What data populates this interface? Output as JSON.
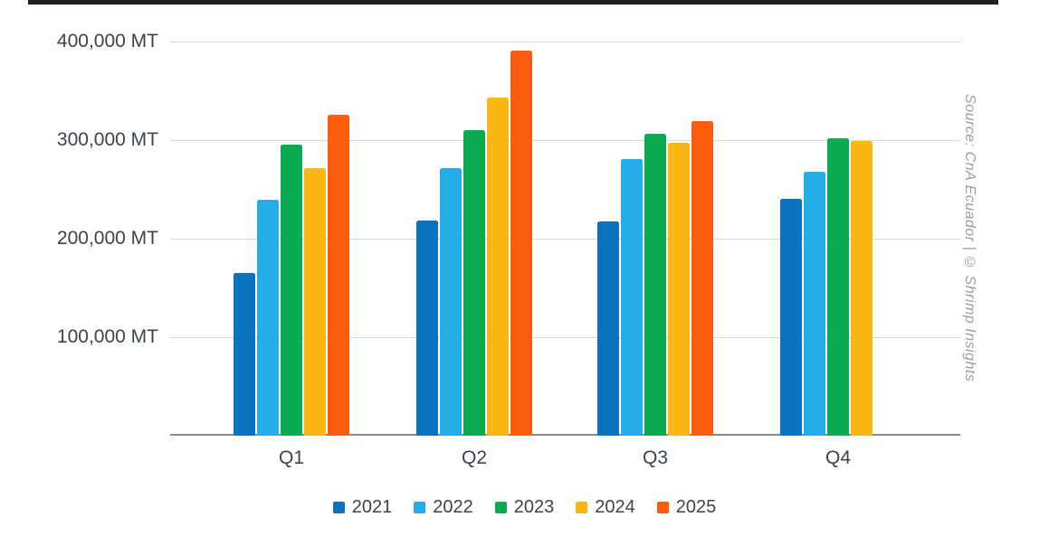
{
  "page": {
    "background": "#ffffff",
    "top_bar_color": "#231f20"
  },
  "chart_data": {
    "type": "bar",
    "title": "",
    "categories": [
      "Q1",
      "Q2",
      "Q3",
      "Q4"
    ],
    "series": [
      {
        "name": "2021",
        "color": "#0b72bd",
        "values": [
          165000,
          218000,
          217000,
          240000
        ]
      },
      {
        "name": "2022",
        "color": "#23aee8",
        "values": [
          239000,
          272000,
          281000,
          268000
        ]
      },
      {
        "name": "2023",
        "color": "#0caa50",
        "values": [
          295000,
          310000,
          306000,
          302000
        ]
      },
      {
        "name": "2024",
        "color": "#fdb714",
        "values": [
          272000,
          343000,
          297000,
          299000
        ]
      },
      {
        "name": "2025",
        "color": "#fb5c0d",
        "values": [
          326000,
          391000,
          319000,
          null
        ]
      }
    ],
    "unit": "MT",
    "y_ticks": [
      {
        "value": 400000,
        "label": "400,000 MT"
      },
      {
        "value": 300000,
        "label": "300,000 MT"
      },
      {
        "value": 200000,
        "label": "200,000 MT"
      },
      {
        "value": 100000,
        "label": "100,000 MT"
      }
    ],
    "ylim": [
      0,
      420000
    ],
    "grid": true,
    "legend_position": "bottom",
    "source_note": "Source: CnA Ecuador | © Shrimp Insights"
  },
  "colors": {
    "tick_text": "#3e434b",
    "gridline": "#dadada",
    "axis_line": "#8a8a8a",
    "source_text": "#9d9d9d"
  }
}
